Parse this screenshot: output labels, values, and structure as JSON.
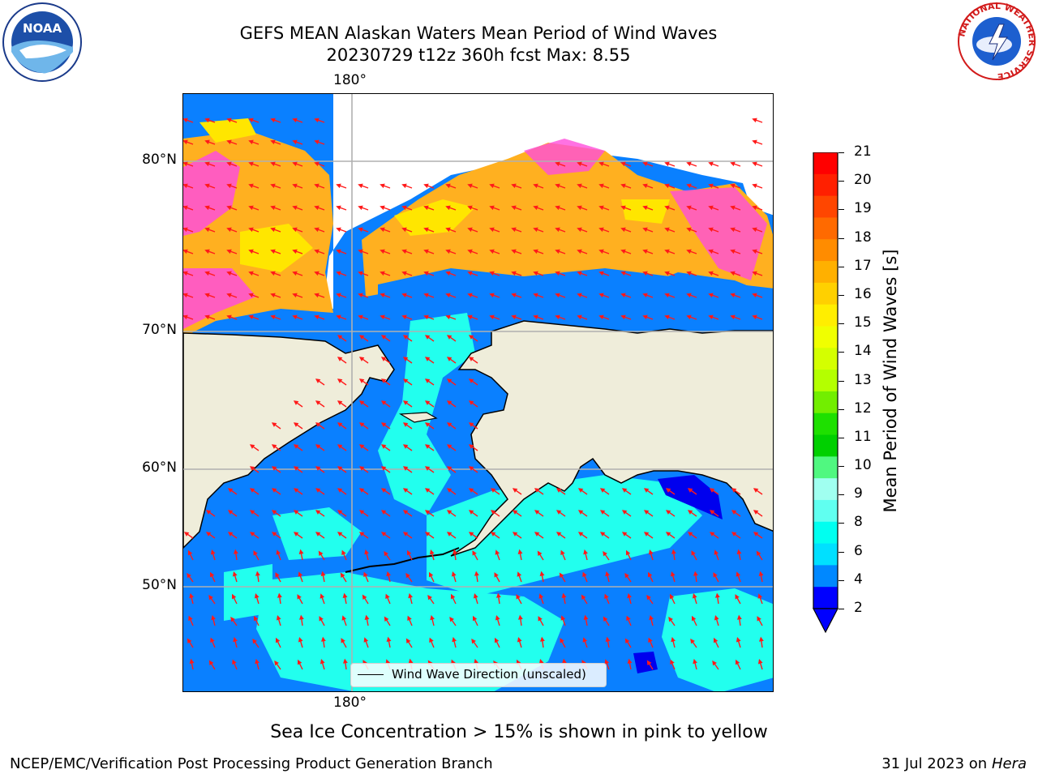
{
  "title": {
    "line1": "GEFS MEAN Alaskan Waters Mean Period of Wind Waves",
    "line2": "20230729 t12z 360h fcst   Max: 8.55"
  },
  "map": {
    "lon_label_top": "180°",
    "lon_label_bottom": "180°",
    "lat_labels": [
      "80°N",
      "70°N",
      "60°N",
      "50°N"
    ],
    "legend_text": "Wind Wave Direction (unscaled)"
  },
  "colorbar": {
    "label": "Mean Period of Wind Waves [s]",
    "ticks": [
      "21",
      "20",
      "19",
      "18",
      "17",
      "16",
      "15",
      "14",
      "13",
      "12",
      "11",
      "10",
      "9",
      "8",
      "6",
      "4",
      "2"
    ],
    "colors": [
      "#ff0000",
      "#ff2000",
      "#ff4600",
      "#ff6a00",
      "#ff8c00",
      "#ffb000",
      "#ffd000",
      "#ffee00",
      "#f0ff00",
      "#d4ff00",
      "#b4ff00",
      "#72ee00",
      "#1ee000",
      "#00d000",
      "#50f880",
      "#a0fff0",
      "#60fff0",
      "#00fff0",
      "#00e0ff",
      "#0088ff",
      "#0000ff"
    ]
  },
  "caption": "Sea Ice Concentration > 15% is shown in pink to yellow",
  "footer": {
    "left": "NCEP/EMC/Verification Post Processing Product Generation Branch",
    "right_date": "31 Jul 2023 on ",
    "right_host": "Hera"
  },
  "logos": {
    "noaa": "NOAA",
    "nws_ring": "NATIONAL WEATHER SERVICE"
  }
}
